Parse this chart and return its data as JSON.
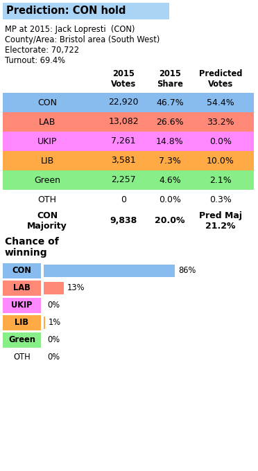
{
  "title": "Prediction: CON hold",
  "title_bg": "#aad4f5",
  "mp_info": "MP at 2015: Jack Lopresti  (CON)",
  "area_info": "County/Area: Bristol area (South West)",
  "electorate_info": "Electorate: 70,722",
  "turnout_info": "Turnout: 69.4%",
  "parties": [
    "CON",
    "LAB",
    "UKIP",
    "LIB",
    "Green",
    "OTH"
  ],
  "party_colors": [
    "#88bbee",
    "#ff8877",
    "#ff88ff",
    "#ffaa44",
    "#88ee88",
    "#ffffff"
  ],
  "votes_2015": [
    "22,920",
    "13,082",
    "7,261",
    "3,581",
    "2,257",
    "0"
  ],
  "share_2015": [
    "46.7%",
    "26.6%",
    "14.8%",
    "7.3%",
    "4.6%",
    "0.0%"
  ],
  "pred_votes": [
    "54.4%",
    "33.2%",
    "0.0%",
    "10.0%",
    "2.1%",
    "0.3%"
  ],
  "majority_votes": "9,838",
  "majority_share": "20.0%",
  "chance_values": [
    86,
    13,
    0,
    1,
    0,
    0
  ],
  "chance_bar_colors": [
    "#88bbee",
    "#ff8877",
    "#aaaaaa",
    "#ffaa44",
    "#88ee88",
    "#aaaaaa"
  ],
  "bg_color": "#ffffff"
}
